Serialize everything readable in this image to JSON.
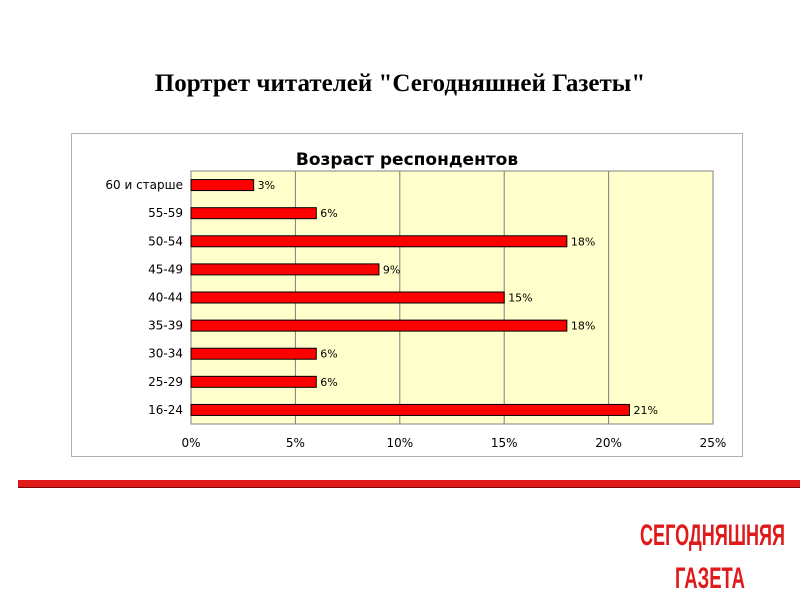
{
  "slide": {
    "title": "Портрет читателей \"Сегодняшней Газеты\""
  },
  "logo": {
    "line1": "СЕГОДНЯШНЯЯ",
    "line2": "ГАЗЕТА"
  },
  "colors": {
    "bar": "#ff0000",
    "plot_bg": "#ffffcc",
    "accent": "#e01a1a"
  },
  "chart_data": {
    "type": "bar",
    "orientation": "horizontal",
    "title": "Возраст респондентов",
    "categories": [
      "60 и старше",
      "55-59",
      "50-54",
      "45-49",
      "40-44",
      "35-39",
      "30-34",
      "25-29",
      "16-24"
    ],
    "values": [
      3,
      6,
      18,
      9,
      15,
      18,
      6,
      6,
      21
    ],
    "value_labels": [
      "3%",
      "6%",
      "18%",
      "9%",
      "15%",
      "18%",
      "6%",
      "6%",
      "21%"
    ],
    "xlim": [
      0,
      25
    ],
    "xticks": [
      "0%",
      "5%",
      "10%",
      "15%",
      "20%",
      "25%"
    ],
    "grid": true,
    "legend": "none"
  }
}
